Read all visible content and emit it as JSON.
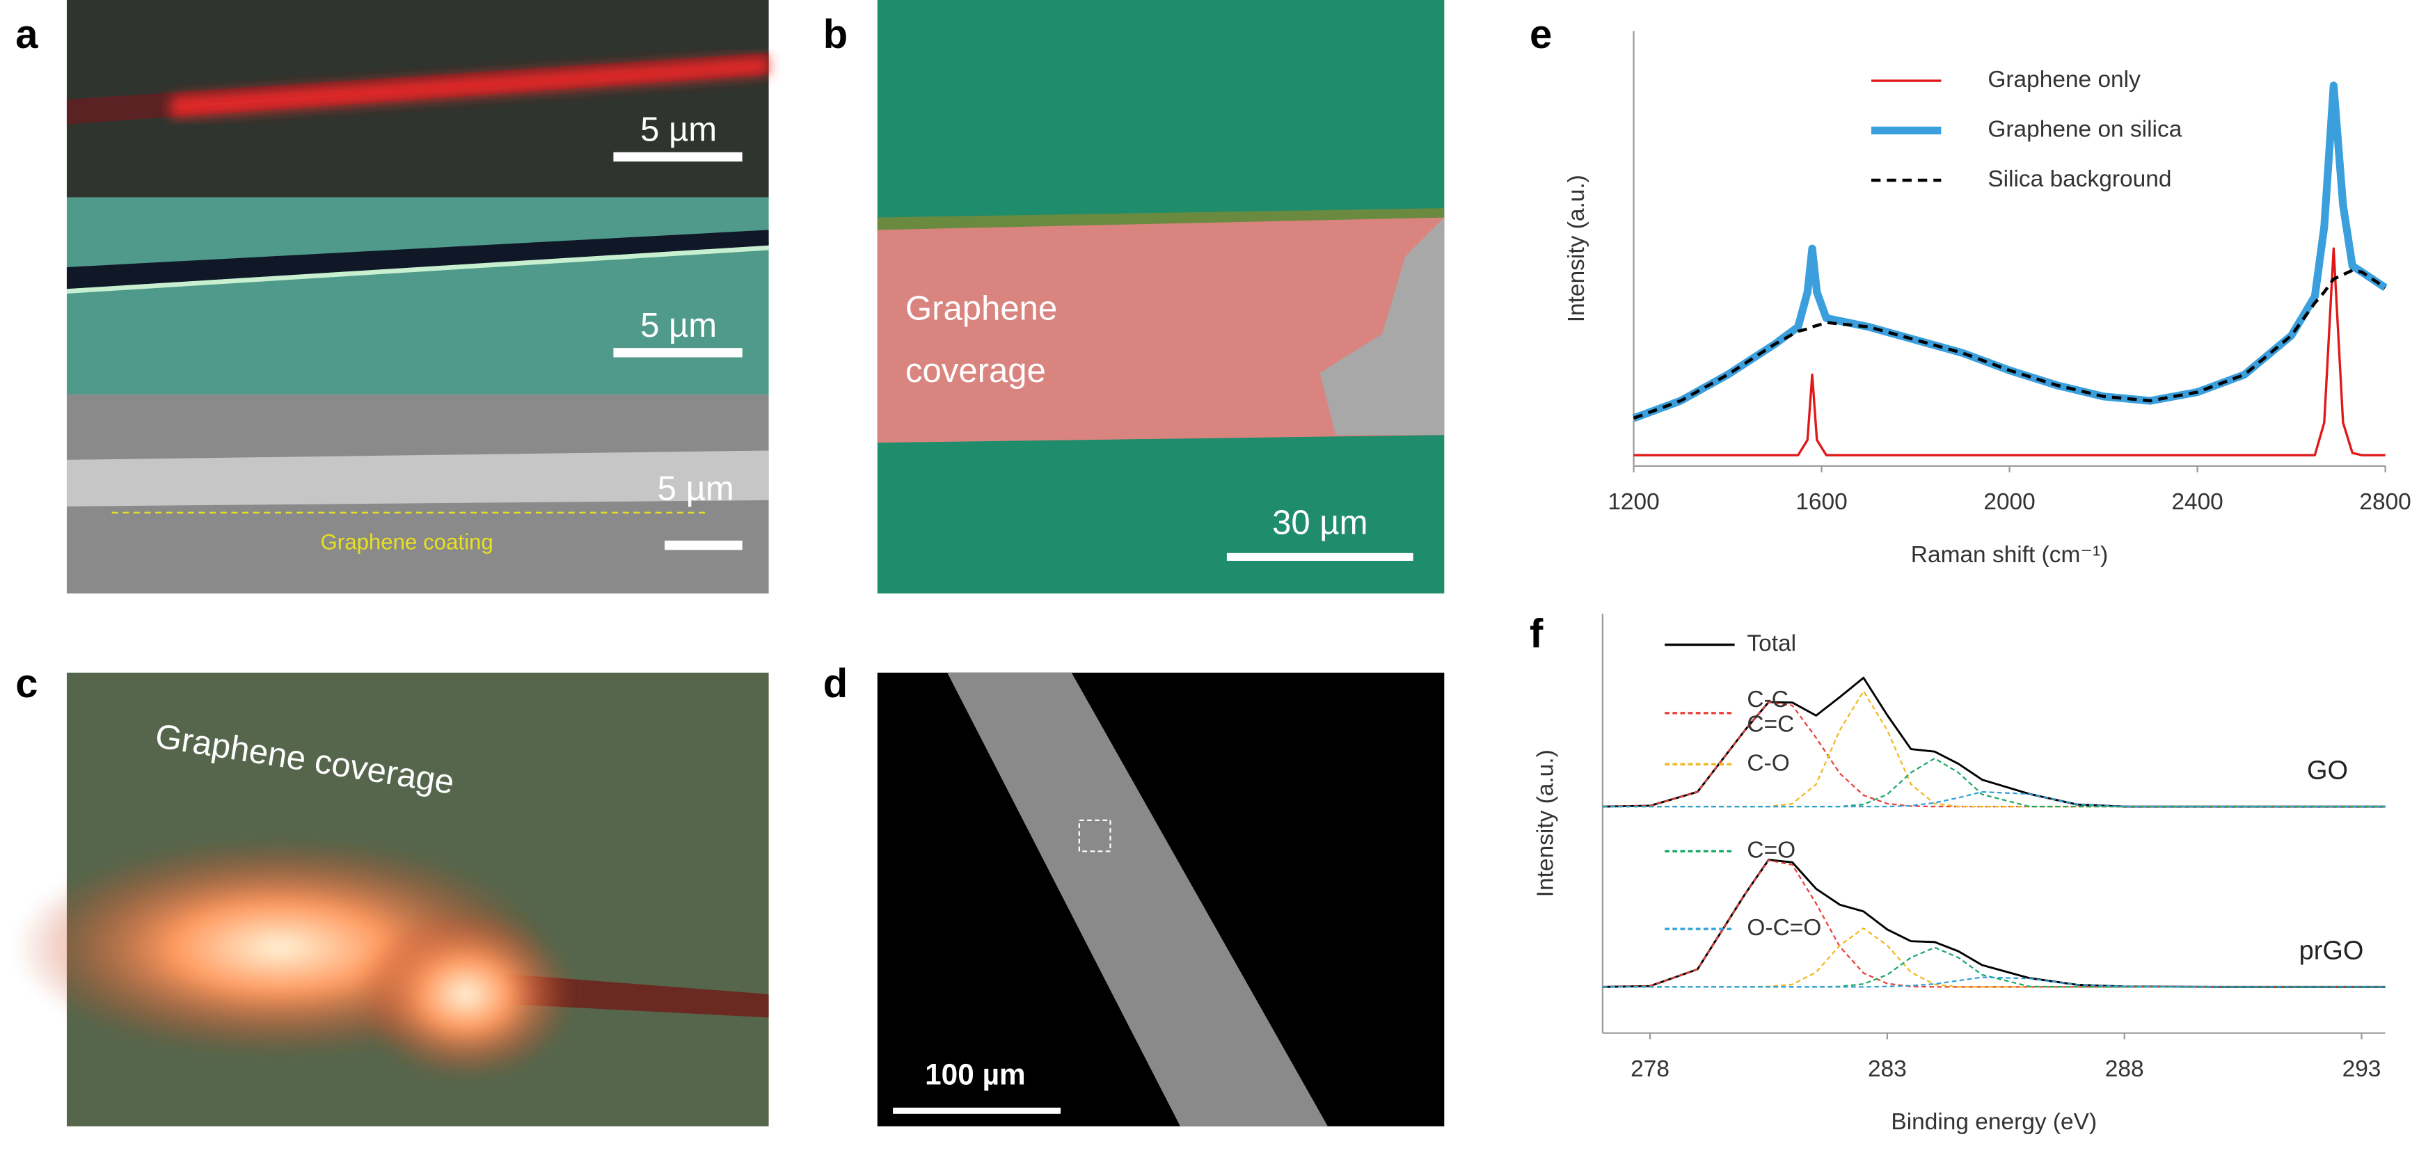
{
  "panels": [
    {
      "label": "a",
      "scale_bars": [
        "5 µm",
        "5 µm",
        "5 µm"
      ],
      "annotation": "Graphene coating"
    },
    {
      "label": "b",
      "annotation": [
        "Graphene",
        "coverage"
      ],
      "scale_bar": "30 µm"
    },
    {
      "label": "c",
      "annotation": "Graphene coverage"
    },
    {
      "label": "d",
      "scale_bar": "100 µm"
    }
  ],
  "chart_data": [
    {
      "type": "line",
      "panel_label": "e",
      "xlabel": "Raman shift (cm⁻¹)",
      "ylabel": "Intensity (a.u.)",
      "x": [
        1200,
        1300,
        1400,
        1500,
        1550,
        1570,
        1580,
        1590,
        1610,
        1700,
        1800,
        1900,
        2000,
        2100,
        2200,
        2300,
        2400,
        2500,
        2600,
        2650,
        2670,
        2690,
        2710,
        2730,
        2750,
        2800
      ],
      "xlim": [
        1200,
        2800
      ],
      "xticks": [
        1200,
        1600,
        2000,
        2400,
        2800
      ],
      "ylim": [
        0,
        100
      ],
      "series": [
        {
          "name": "Graphene only",
          "color": "#e01818",
          "values": [
            2.5,
            2.5,
            2.5,
            2.5,
            2.5,
            6,
            21,
            6,
            2.5,
            2.5,
            2.5,
            2.5,
            2.5,
            2.5,
            2.5,
            2.5,
            2.5,
            2.5,
            2.5,
            2.5,
            10,
            50,
            10,
            3,
            2.5,
            2.5
          ]
        },
        {
          "name": "Graphene on silica",
          "color": "#3a9fdc",
          "values": [
            11,
            15,
            21,
            28,
            32,
            40,
            50,
            40,
            34,
            32,
            29,
            26,
            22,
            18.6,
            16,
            15,
            17,
            21,
            30,
            39,
            55,
            87.5,
            60,
            46,
            44.6,
            41
          ]
        },
        {
          "name": "Silica background",
          "color": "#000000",
          "dash": true,
          "values": [
            11,
            15,
            21,
            28,
            31,
            31.5,
            32,
            32.3,
            33,
            32,
            29,
            26,
            22,
            18.6,
            16,
            15,
            17,
            21,
            30,
            37.5,
            40,
            43,
            44,
            45,
            44.6,
            41
          ]
        }
      ]
    },
    {
      "type": "line",
      "panel_label": "f",
      "xlabel": "Binding energy (eV)",
      "ylabel": "Intensity (a.u.)",
      "samples": [
        "GO",
        "prGO"
      ],
      "x": [
        277,
        278,
        279,
        280,
        280.5,
        281,
        281.5,
        282,
        282.5,
        283,
        283.5,
        284,
        284.5,
        285,
        286,
        287,
        288,
        290,
        293.5
      ],
      "xlim": [
        277,
        293.5
      ],
      "xticks": [
        278,
        283,
        288,
        293
      ],
      "ylim": [
        0,
        100
      ],
      "series": [
        {
          "name": "Total",
          "color": "#000000",
          "values": [
            [
              54,
              54.2,
              57.5,
              72.2,
              78.9,
              78.8,
              75.7,
              80.1,
              84.7,
              75.8,
              67.7,
              67.1,
              64.2,
              60.4,
              57,
              54.5,
              54,
              54,
              54
            ],
            [
              11,
              11.2,
              15.2,
              33.1,
              41.3,
              40.7,
              34.4,
              30.6,
              29,
              24.7,
              21.9,
              21.7,
              19.5,
              16.2,
              13.1,
              11.5,
              11.1,
              11,
              11
            ]
          ]
        },
        {
          "name": [
            "C-C",
            "C=C"
          ],
          "color": "#e8403a",
          "dash": true,
          "values": [
            [
              54,
              54.2,
              57.5,
              72.2,
              78.9,
              78.1,
              70.4,
              61.9,
              56.7,
              54.7,
              54.1,
              54,
              54,
              54,
              54,
              54,
              54,
              54,
              54
            ],
            [
              11,
              11.2,
              15.2,
              33.1,
              41.2,
              40.1,
              30.9,
              20.6,
              14.3,
              11.8,
              11.1,
              11,
              11,
              11,
              11,
              11,
              11,
              11,
              11
            ]
          ]
        },
        {
          "name": "C-O",
          "color": "#f0b820",
          "dash": true,
          "values": [
            [
              54,
              54,
              54,
              54,
              54,
              54.7,
              59.3,
              72.2,
              81.5,
              72.2,
              59.3,
              54.7,
              54,
              54,
              54,
              54,
              54,
              54,
              54
            ],
            [
              11,
              11,
              11,
              11,
              11.1,
              11.6,
              14.5,
              20.9,
              25,
              20.9,
              14.5,
              11.6,
              11,
              11,
              11,
              11,
              11,
              11,
              11
            ]
          ]
        },
        {
          "name": "C=O",
          "color": "#18a868",
          "dash": true,
          "values": [
            [
              54,
              54,
              54,
              54,
              54,
              54,
              54,
              54,
              54.5,
              56.9,
              62.1,
              65.5,
              62.1,
              56.9,
              54,
              54,
              54,
              54,
              54
            ],
            [
              11,
              11,
              11,
              11,
              11,
              11,
              11,
              11.1,
              11.7,
              13.9,
              18,
              20.4,
              18,
              13.9,
              11.1,
              11,
              11,
              11,
              11
            ]
          ]
        },
        {
          "name": "O-C=O",
          "color": "#30a0d8",
          "dash": true,
          "values": [
            [
              54,
              54,
              54,
              54,
              54,
              54,
              54,
              54,
              54,
              54,
              54.2,
              54.9,
              56.1,
              57.5,
              57,
              54.5,
              54,
              54,
              54
            ],
            [
              11,
              11,
              11,
              11,
              11,
              11,
              11,
              11,
              11,
              11.1,
              11.3,
              11.7,
              12.5,
              13.3,
              13,
              11.5,
              11.1,
              11,
              11
            ]
          ]
        }
      ]
    }
  ]
}
